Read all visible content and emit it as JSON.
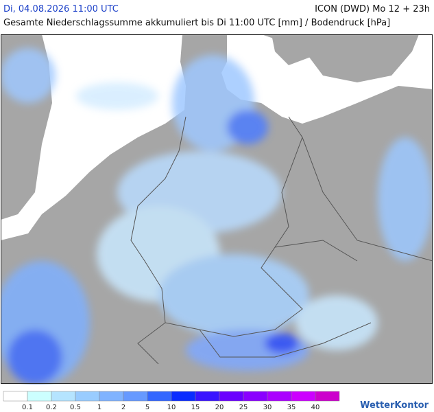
{
  "header": {
    "date": "Di, 04.08.2026 11:00 UTC",
    "model": "ICON (DWD) Mo 12 + 23h",
    "subtitle": "Gesamte Niederschlagssumme akkumuliert bis Di 11:00 UTC [mm] / Bodendruck [hPa]"
  },
  "legend": {
    "colors": [
      "#ffffff",
      "#ccffff",
      "#b5e4ff",
      "#99ccff",
      "#80b3ff",
      "#6699ff",
      "#3366ff",
      "#0a2cff",
      "#3a14ff",
      "#6a00ff",
      "#8a00ff",
      "#aa00ff",
      "#cc00ff",
      "#cc00cc"
    ],
    "labels": [
      "0.1",
      "0.2",
      "0.5",
      "1",
      "2",
      "5",
      "10",
      "15",
      "20",
      "25",
      "30",
      "35",
      "40"
    ]
  },
  "footer": {
    "logo": "WetterKontor"
  }
}
